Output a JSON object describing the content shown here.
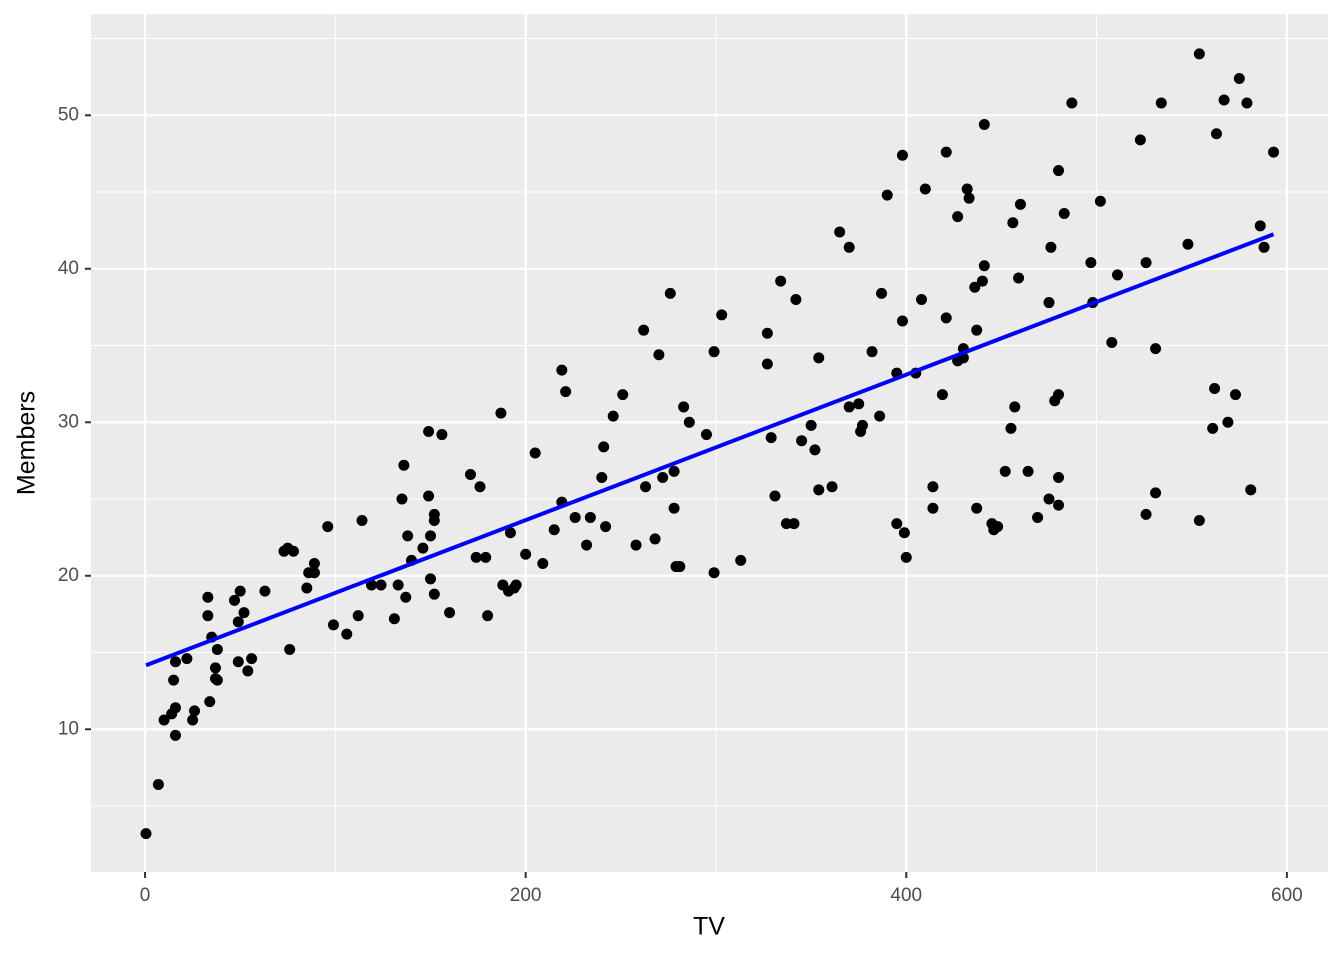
{
  "chart_data": {
    "type": "scatter",
    "xlabel": "TV",
    "ylabel": "Members",
    "x": [
      0.5,
      7,
      10,
      14,
      15,
      16,
      16,
      16,
      22,
      25,
      26,
      33,
      33,
      34,
      35,
      37,
      37,
      38,
      38,
      47,
      49,
      50,
      49,
      52,
      54,
      56,
      63,
      73,
      75,
      78,
      76,
      85,
      86,
      89,
      89,
      96,
      99,
      106,
      112,
      114,
      119,
      124,
      131,
      133,
      135,
      136,
      137,
      138,
      140,
      146,
      149,
      149,
      150,
      150,
      152,
      152,
      152,
      156,
      160,
      171,
      174,
      176,
      179,
      180,
      187,
      188,
      191,
      192,
      194,
      195,
      200,
      205,
      209,
      215,
      219,
      219,
      221,
      226,
      232,
      234,
      240,
      241,
      242,
      246,
      251,
      258,
      262,
      263,
      268,
      270,
      272,
      276,
      278,
      278,
      279,
      281,
      283,
      286,
      295,
      299,
      299,
      303,
      313,
      327,
      327,
      329,
      331,
      334,
      337,
      341,
      342,
      345,
      350,
      352,
      354,
      354,
      361,
      365,
      370,
      370,
      375,
      376,
      377,
      382,
      386,
      387,
      390,
      395,
      395,
      398,
      398,
      399,
      400,
      405,
      408,
      410,
      414,
      414,
      419,
      421,
      421,
      427,
      427,
      430,
      430,
      432,
      433,
      436,
      437,
      437,
      440,
      441,
      441,
      445,
      446,
      448,
      452,
      455,
      456,
      457,
      459,
      460,
      464,
      469,
      475,
      475,
      476,
      478,
      480,
      480,
      480,
      480,
      483,
      487,
      497,
      498,
      502,
      508,
      511,
      523,
      526,
      526,
      531,
      531,
      534,
      548,
      554,
      554,
      561,
      562,
      563,
      567,
      569,
      573,
      575,
      579,
      581,
      586,
      588,
      593
    ],
    "values": [
      3.2,
      6.4,
      10.6,
      11,
      13.2,
      14.4,
      11.4,
      9.6,
      14.6,
      10.6,
      11.2,
      18.6,
      17.4,
      11.8,
      16,
      14,
      13.3,
      15.2,
      13.2,
      18.4,
      17,
      19,
      14.4,
      17.6,
      13.8,
      14.6,
      19,
      21.6,
      21.8,
      21.6,
      15.2,
      19.2,
      20.2,
      20.8,
      20.2,
      23.2,
      16.8,
      16.2,
      17.4,
      23.6,
      19.4,
      19.4,
      17.2,
      19.4,
      25,
      27.2,
      18.6,
      22.6,
      21,
      21.8,
      29.4,
      25.2,
      19.8,
      22.6,
      24,
      23.6,
      18.8,
      29.2,
      17.6,
      26.6,
      21.2,
      25.8,
      21.2,
      17.4,
      30.6,
      19.4,
      19,
      22.8,
      19.2,
      19.4,
      21.4,
      28,
      20.8,
      23,
      33.4,
      24.8,
      32,
      23.8,
      22,
      23.8,
      26.4,
      28.4,
      23.2,
      30.4,
      31.8,
      22,
      36,
      25.8,
      22.4,
      34.4,
      26.4,
      38.4,
      26.8,
      24.4,
      20.6,
      20.6,
      31,
      30,
      29.2,
      34.6,
      20.2,
      37,
      21,
      35.8,
      33.8,
      29,
      25.2,
      39.2,
      23.4,
      23.4,
      38,
      28.8,
      29.8,
      28.2,
      34.2,
      25.6,
      25.8,
      42.4,
      41.4,
      31,
      31.2,
      29.4,
      29.8,
      34.6,
      30.4,
      38.4,
      44.8,
      23.4,
      33.2,
      47.4,
      36.6,
      22.8,
      21.2,
      33.2,
      38,
      45.2,
      24.4,
      25.8,
      31.8,
      47.6,
      36.8,
      43.4,
      34,
      34.2,
      34.8,
      45.2,
      44.6,
      38.8,
      36,
      24.4,
      39.2,
      49.4,
      40.2,
      23.4,
      23,
      23.2,
      26.8,
      29.6,
      43,
      31,
      39.4,
      44.2,
      26.8,
      23.8,
      25,
      37.8,
      41.4,
      31.4,
      31.8,
      46.4,
      24.6,
      26.4,
      43.6,
      50.8,
      40.4,
      37.8,
      44.4,
      35.2,
      39.6,
      48.4,
      40.4,
      24,
      25.4,
      34.8,
      50.8,
      41.6,
      23.6,
      54,
      29.6,
      32.2,
      48.8,
      51,
      30,
      31.8,
      52.4,
      50.8,
      25.6,
      42.8,
      41.4,
      47.6
    ],
    "color": "#000000",
    "fit": {
      "x": [
        0.5,
        593
      ],
      "values": [
        14.17,
        42.25
      ],
      "color": "#0000ff"
    },
    "xlim": [
      -28.4,
      621.6
    ],
    "ylim": [
      0.7,
      56.6
    ],
    "xticks": [
      0,
      200,
      400,
      600
    ],
    "yticks": [
      10,
      20,
      30,
      40,
      50
    ],
    "xminor": [
      100,
      300,
      500
    ],
    "yminor": [
      5,
      15,
      25,
      35,
      45,
      55
    ],
    "grid": true
  }
}
